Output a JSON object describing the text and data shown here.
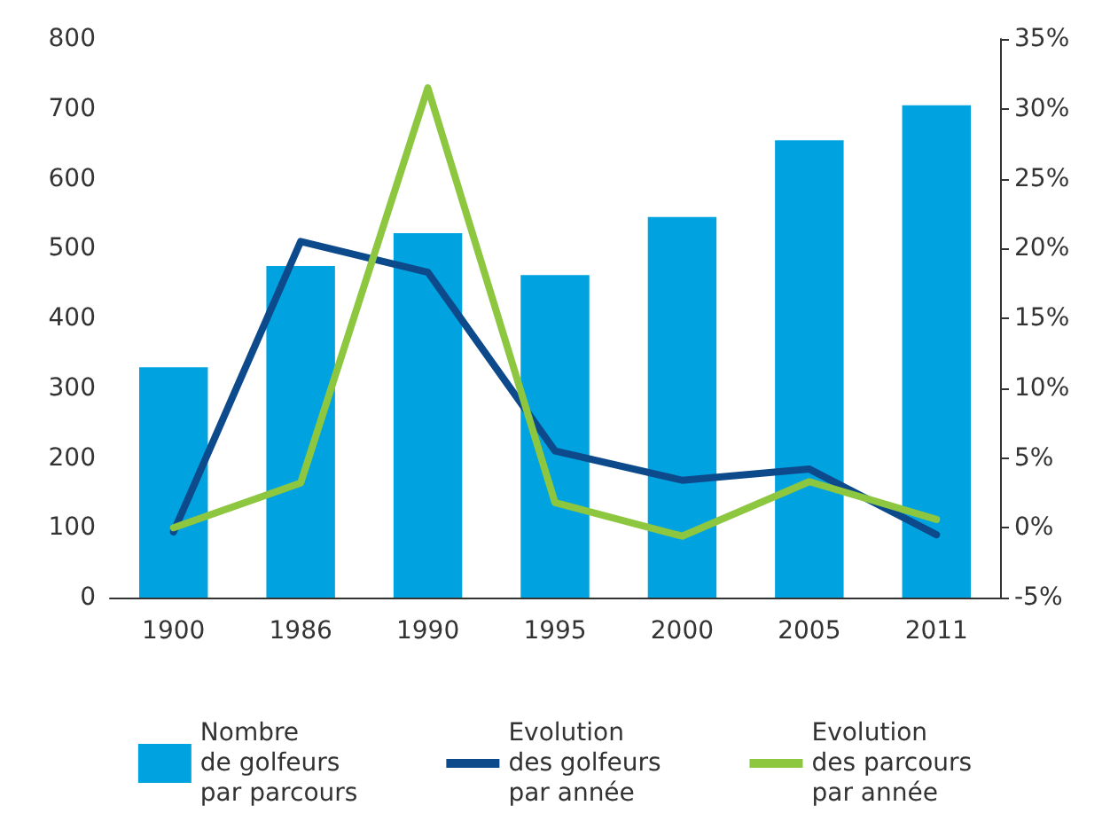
{
  "chart_data": {
    "type": "bar",
    "categories": [
      "1900",
      "1986",
      "1990",
      "1995",
      "2000",
      "2005",
      "2011"
    ],
    "series": [
      {
        "name": "Nombre\nde golfeurs\npar parcours",
        "color": "#00a3e0",
        "values": [
          330,
          475,
          522,
          462,
          545,
          655,
          705
        ]
      },
      {
        "name": "Evolution\ndes golfeurs\npar année",
        "type": "line",
        "axis": "y2",
        "color": "#0d4a8c",
        "values": [
          -0.3,
          20.5,
          18.3,
          5.5,
          3.4,
          4.2,
          -0.5
        ]
      },
      {
        "name": "Evolution\ndes parcours\npar année",
        "type": "line",
        "axis": "y2",
        "color": "#8dc63f",
        "values": [
          0,
          3.2,
          31.5,
          1.8,
          -0.6,
          3.3,
          0.6
        ]
      }
    ],
    "ylim": [
      0,
      800
    ],
    "yticks": [
      0,
      100,
      200,
      300,
      400,
      500,
      600,
      700,
      800
    ],
    "y2lim": [
      -5,
      35
    ],
    "y2ticks": [
      {
        "value": -5,
        "label": "-5%"
      },
      {
        "value": 0,
        "label": "0%"
      },
      {
        "value": 5,
        "label": "5%"
      },
      {
        "value": 10,
        "label": "10%"
      },
      {
        "value": 15,
        "label": "15%"
      },
      {
        "value": 20,
        "label": "20%"
      },
      {
        "value": 25,
        "label": "25%"
      },
      {
        "value": 30,
        "label": "30%"
      },
      {
        "value": 35,
        "label": "35%"
      }
    ],
    "grid": false,
    "legend": "bottom",
    "marker": "none",
    "line_style": "solid"
  }
}
